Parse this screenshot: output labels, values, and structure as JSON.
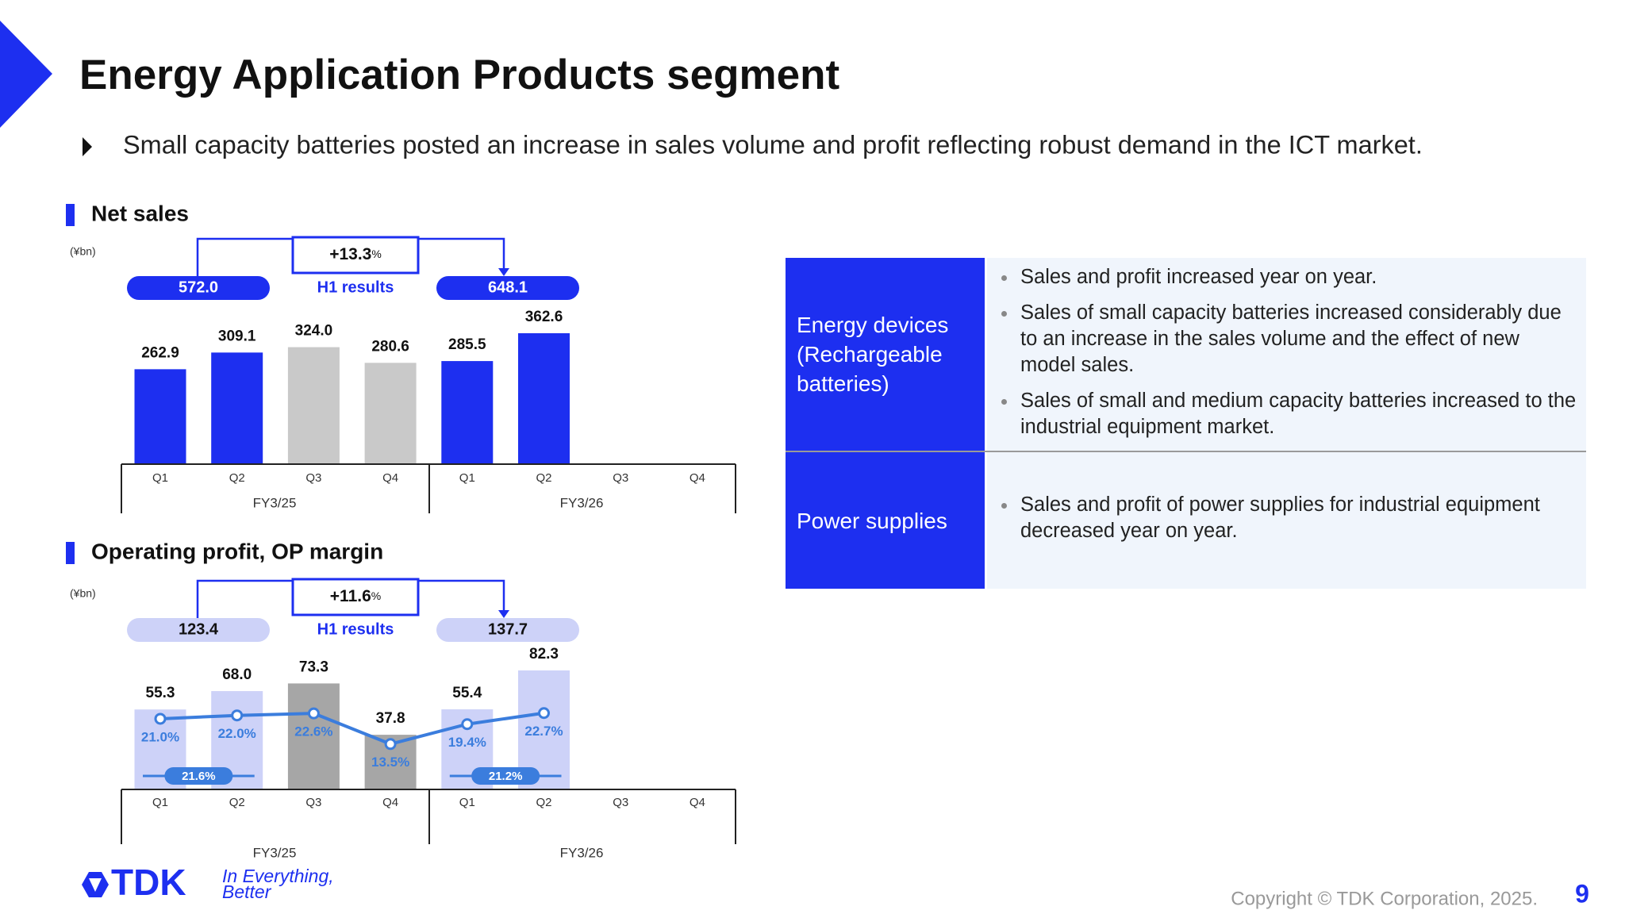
{
  "title": "Energy Application Products segment",
  "subtitle": "Small capacity batteries posted an increase in sales volume and profit reflecting robust demand in the ICT market.",
  "chart_data": [
    {
      "type": "bar",
      "title": "Net sales",
      "unit": "(¥bn)",
      "categories": [
        "Q1",
        "Q2",
        "Q3",
        "Q4",
        "Q1",
        "Q2",
        "Q3",
        "Q4"
      ],
      "groups": [
        "FY3/25",
        "FY3/26"
      ],
      "values": [
        262.9,
        309.1,
        324,
        280.6,
        285.5,
        362.6,
        null,
        null
      ],
      "value_labels": [
        "262.9",
        "309.1",
        "324.0",
        "280.6",
        "285.5",
        "362.6",
        null,
        null
      ],
      "colors": [
        "#1d2ff0",
        "#1d2ff0",
        "#c9c9c9",
        "#c9c9c9",
        "#1d2ff0",
        "#1d2ff0",
        "#1d2ff0",
        "#1d2ff0"
      ],
      "annotations": {
        "h1_before": "572.0",
        "h1_after": "648.1",
        "change": "+13.3",
        "change_unit": "%",
        "h1_label": "H1 results"
      }
    },
    {
      "type": "bar",
      "title": "Operating profit, OP margin",
      "unit": "(¥bn)",
      "categories": [
        "Q1",
        "Q2",
        "Q3",
        "Q4",
        "Q1",
        "Q2",
        "Q3",
        "Q4"
      ],
      "groups": [
        "FY3/25",
        "FY3/26"
      ],
      "values": [
        55.3,
        68,
        73.3,
        37.8,
        55.4,
        82.3,
        null,
        null
      ],
      "value_labels": [
        "55.3",
        "68.0",
        "73.3",
        "37.8",
        "55.4",
        "82.3",
        null,
        null
      ],
      "colors": [
        "#cdd2f8",
        "#cdd2f8",
        "#a6a6a6",
        "#a6a6a6",
        "#cdd2f8",
        "#cdd2f8",
        "#cdd2f8",
        "#cdd2f8"
      ],
      "margin": {
        "type": "line",
        "color": "#3b7ddd",
        "values": [
          21,
          22,
          22.6,
          13.5,
          19.4,
          22.7,
          null,
          null
        ],
        "value_labels": [
          "21.0%",
          "22.0%",
          "22.6%",
          "13.5%",
          "19.4%",
          "22.7%",
          null,
          null
        ],
        "h1": [
          "21.6%",
          "21.2%"
        ]
      },
      "annotations": {
        "h1_before": "123.4",
        "h1_after": "137.7",
        "change": "+11.6",
        "change_unit": "%",
        "h1_label": "H1 results"
      }
    }
  ],
  "table": {
    "rows": [
      {
        "header": "Energy devices (Rechargeable batteries)",
        "bullets": [
          "Sales and profit increased year on year.",
          "Sales of small capacity batteries increased considerably due to an increase in the sales volume and the effect of new model sales.",
          "Sales of small and medium capacity batteries increased to the industrial equipment market."
        ]
      },
      {
        "header": "Power supplies",
        "bullets": [
          "Sales and profit of power supplies for industrial equipment decreased year on year."
        ]
      }
    ]
  },
  "footer": {
    "logo": "TDK",
    "tagline_1": "In Everything,",
    "tagline_2": "Better",
    "copyright": "Copyright © TDK Corporation, 2025.",
    "page": "9"
  }
}
